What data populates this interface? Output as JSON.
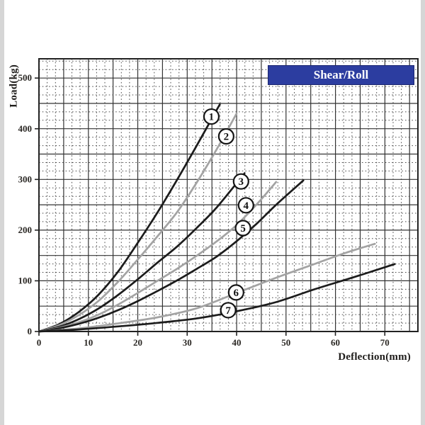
{
  "page": {
    "background": "#ffffff",
    "edge_strip_color": "#d6d6d6"
  },
  "chart_data": {
    "type": "line",
    "xlabel": "Deflection(mm)",
    "ylabel": "Load(kg)",
    "xlim": [
      0,
      76.7
    ],
    "ylim": [
      0,
      538
    ],
    "x_ticks": [
      0,
      10,
      20,
      30,
      40,
      50,
      60,
      70
    ],
    "y_ticks": [
      0,
      100,
      200,
      300,
      400,
      500
    ],
    "grid": {
      "style": "dense dotted minors with solid majors",
      "x_minor_step_mm": 1.667,
      "x_major_step_mm": 5,
      "y_minor_step_kg": 16.667,
      "y_major_step_kg": 50
    },
    "legend": {
      "label": "Shear/Roll",
      "bg": "#2c3da0",
      "border": "#1b2670",
      "text_color": "#ffffff",
      "position": "top-right"
    },
    "colors": {
      "black_curve": "#1c1c1c",
      "gray_curve": "#a3a3a3",
      "grid_minor": "#4f4f4f",
      "grid_major": "#333333",
      "axis": "#222222",
      "tick_text": "#2b2824"
    },
    "series": [
      {
        "name": "1",
        "color": "#1c1c1c",
        "points": [
          [
            0,
            0
          ],
          [
            4,
            14
          ],
          [
            8,
            38
          ],
          [
            12,
            72
          ],
          [
            16,
            118
          ],
          [
            20,
            175
          ],
          [
            24,
            235
          ],
          [
            28,
            300
          ],
          [
            32,
            368
          ],
          [
            36.6,
            448
          ]
        ]
      },
      {
        "name": "2",
        "color": "#a3a3a3",
        "points": [
          [
            0,
            0
          ],
          [
            4,
            12
          ],
          [
            8,
            32
          ],
          [
            12,
            60
          ],
          [
            16,
            98
          ],
          [
            20,
            142
          ],
          [
            24,
            188
          ],
          [
            28,
            236
          ],
          [
            32,
            295
          ],
          [
            36,
            360
          ],
          [
            40,
            430
          ]
        ]
      },
      {
        "name": "3",
        "color": "#1c1c1c",
        "points": [
          [
            0,
            0
          ],
          [
            4,
            9
          ],
          [
            8,
            24
          ],
          [
            12,
            45
          ],
          [
            16,
            72
          ],
          [
            20,
            103
          ],
          [
            24,
            136
          ],
          [
            28,
            168
          ],
          [
            32,
            205
          ],
          [
            36,
            245
          ],
          [
            41.6,
            312
          ]
        ]
      },
      {
        "name": "4",
        "color": "#a3a3a3",
        "points": [
          [
            0,
            0
          ],
          [
            4,
            7
          ],
          [
            8,
            18
          ],
          [
            12,
            33
          ],
          [
            16,
            53
          ],
          [
            20,
            76
          ],
          [
            24,
            100
          ],
          [
            28,
            124
          ],
          [
            32,
            150
          ],
          [
            36,
            178
          ],
          [
            40,
            210
          ],
          [
            44,
            250
          ],
          [
            48,
            295
          ]
        ]
      },
      {
        "name": "5",
        "color": "#1c1c1c",
        "points": [
          [
            0,
            0
          ],
          [
            4,
            6
          ],
          [
            8,
            15
          ],
          [
            12,
            27
          ],
          [
            16,
            42
          ],
          [
            20,
            60
          ],
          [
            24,
            80
          ],
          [
            28,
            101
          ],
          [
            32,
            124
          ],
          [
            36,
            148
          ],
          [
            40,
            178
          ],
          [
            44,
            212
          ],
          [
            48,
            250
          ],
          [
            53.5,
            298
          ]
        ]
      },
      {
        "name": "6",
        "color": "#a3a3a3",
        "points": [
          [
            0,
            0
          ],
          [
            8,
            6
          ],
          [
            16,
            16
          ],
          [
            24,
            28
          ],
          [
            32,
            46
          ],
          [
            40,
            76
          ],
          [
            48,
            106
          ],
          [
            56,
            134
          ],
          [
            62,
            155
          ],
          [
            68,
            173
          ]
        ]
      },
      {
        "name": "7",
        "color": "#1c1c1c",
        "points": [
          [
            0,
            0
          ],
          [
            8,
            4
          ],
          [
            16,
            10
          ],
          [
            24,
            17
          ],
          [
            32,
            26
          ],
          [
            40,
            40
          ],
          [
            48,
            58
          ],
          [
            56,
            84
          ],
          [
            64,
            108
          ],
          [
            72,
            133
          ]
        ]
      }
    ],
    "markers": [
      {
        "label": "1",
        "x": 34.9,
        "y": 424
      },
      {
        "label": "2",
        "x": 37.9,
        "y": 385
      },
      {
        "label": "3",
        "x": 40.9,
        "y": 296
      },
      {
        "label": "4",
        "x": 41.9,
        "y": 249
      },
      {
        "label": "5",
        "x": 41.3,
        "y": 204
      },
      {
        "label": "6",
        "x": 39.9,
        "y": 77
      },
      {
        "label": "7",
        "x": 38.3,
        "y": 42
      }
    ]
  }
}
